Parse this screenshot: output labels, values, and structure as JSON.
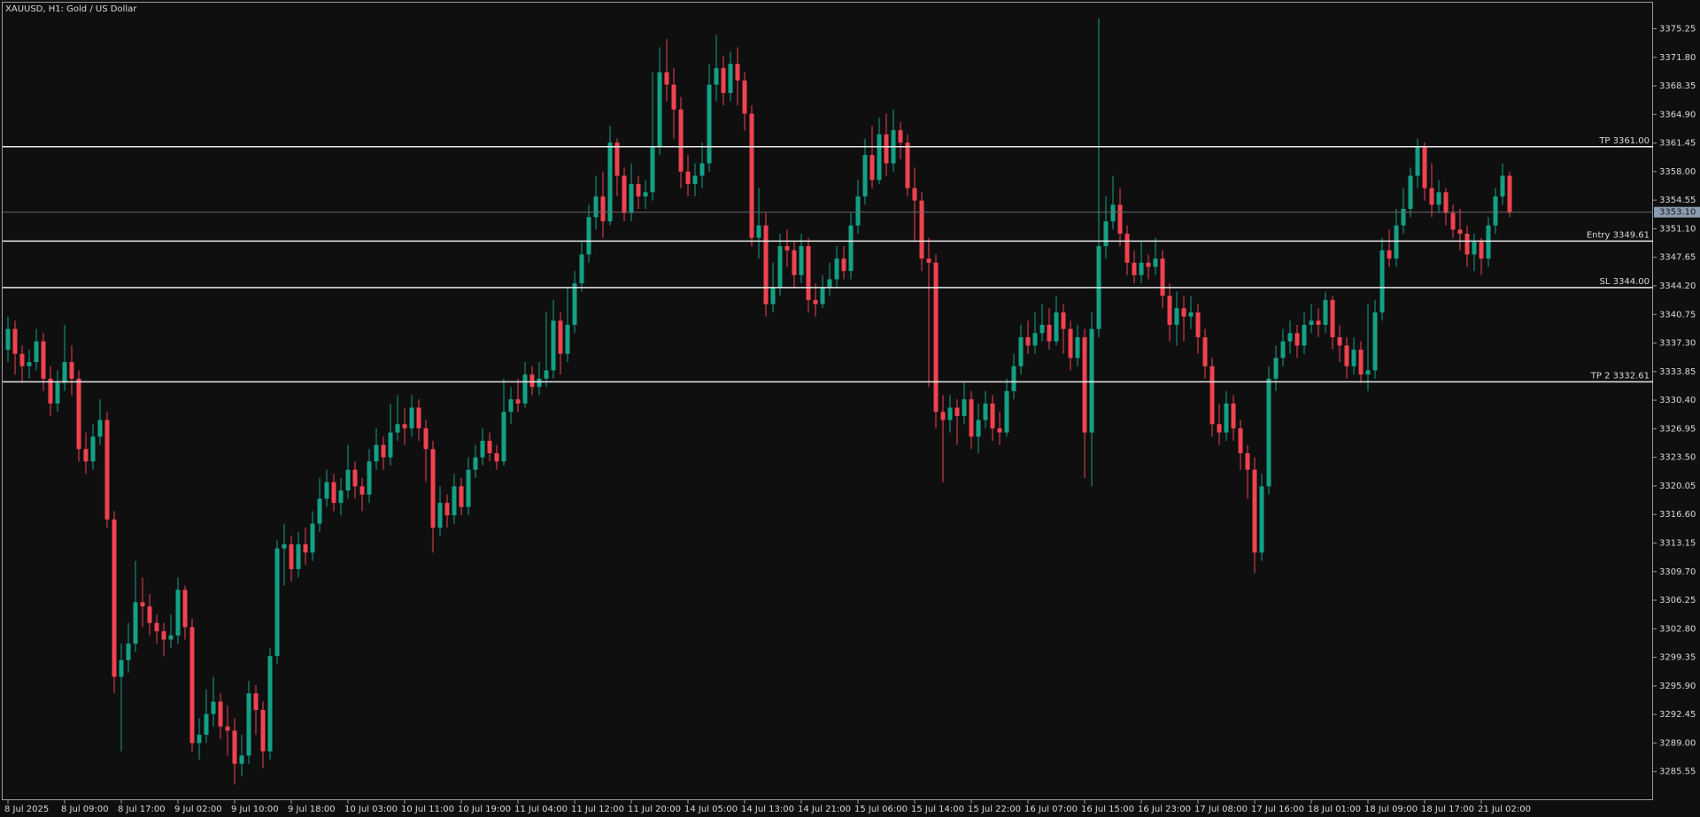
{
  "chart_data": {
    "type": "candlestick",
    "title": "XAUUSD, H1:  Gold / US Dollar",
    "up_color": "#14a085",
    "down_color": "#f0424f",
    "level_color": "#e8e8e8",
    "categories": [
      "8 Jul 2025",
      null,
      null,
      null,
      null,
      null,
      null,
      null,
      "8 Jul 09:00",
      null,
      null,
      null,
      null,
      null,
      null,
      null,
      "8 Jul 17:00",
      null,
      null,
      null,
      null,
      null,
      null,
      null,
      "9 Jul 02:00",
      null,
      null,
      null,
      null,
      null,
      null,
      null,
      "9 Jul 10:00",
      null,
      null,
      null,
      null,
      null,
      null,
      null,
      "9 Jul 18:00",
      null,
      null,
      null,
      null,
      null,
      null,
      null,
      "10 Jul 03:00",
      null,
      null,
      null,
      null,
      null,
      null,
      null,
      "10 Jul 11:00",
      null,
      null,
      null,
      null,
      null,
      null,
      null,
      "10 Jul 19:00",
      null,
      null,
      null,
      null,
      null,
      null,
      null,
      "11 Jul 04:00",
      null,
      null,
      null,
      null,
      null,
      null,
      null,
      "11 Jul 12:00",
      null,
      null,
      null,
      null,
      null,
      null,
      null,
      "11 Jul 20:00",
      null,
      null,
      null,
      null,
      null,
      null,
      null,
      "14 Jul 05:00",
      null,
      null,
      null,
      null,
      null,
      null,
      null,
      "14 Jul 13:00",
      null,
      null,
      null,
      null,
      null,
      null,
      null,
      "14 Jul 21:00",
      null,
      null,
      null,
      null,
      null,
      null,
      null,
      "15 Jul 06:00",
      null,
      null,
      null,
      null,
      null,
      null,
      null,
      "15 Jul 14:00",
      null,
      null,
      null,
      null,
      null,
      null,
      null,
      "15 Jul 22:00",
      null,
      null,
      null,
      null,
      null,
      null,
      null,
      "16 Jul 07:00",
      null,
      null,
      null,
      null,
      null,
      null,
      null,
      "16 Jul 15:00",
      null,
      null,
      null,
      null,
      null,
      null,
      null,
      "16 Jul 23:00",
      null,
      null,
      null,
      null,
      null,
      null,
      null,
      "17 Jul 08:00",
      null,
      null,
      null,
      null,
      null,
      null,
      null,
      "17 Jul 16:00",
      null,
      null,
      null,
      null,
      null,
      null,
      null,
      "18 Jul 01:00",
      null,
      null,
      null,
      null,
      null,
      null,
      null,
      "18 Jul 09:00",
      null,
      null,
      null,
      null,
      null,
      null,
      null,
      "18 Jul 17:00",
      null,
      null,
      null,
      null,
      null,
      null,
      null,
      "21 Jul 02:00",
      null,
      null,
      null,
      null
    ],
    "open": [
      3336.5,
      3339.0,
      3336.0,
      3334.5,
      3335.0,
      3337.5,
      3333.0,
      3330.0,
      3332.5,
      3335.0,
      3333.0,
      3324.5,
      3323.0,
      3326.0,
      3328.0,
      3316.0,
      3297.0,
      3299.0,
      3301.0,
      3306.0,
      3305.5,
      3303.5,
      3302.5,
      3301.5,
      3302.0,
      3307.5,
      3303.0,
      3289.0,
      3290.0,
      3292.5,
      3294.0,
      3291.0,
      3290.5,
      3286.5,
      3287.5,
      3295.0,
      3293.0,
      3288.0,
      3299.5,
      3312.5,
      3313.0,
      3310.0,
      3313.0,
      3312.0,
      3315.5,
      3318.5,
      3320.5,
      3318.0,
      3319.5,
      3322.0,
      3320.0,
      3319.0,
      3323.0,
      3325.0,
      3323.5,
      3326.5,
      3327.5,
      3327.0,
      3329.5,
      3327.0,
      3324.5,
      3315.0,
      3318.0,
      3316.5,
      3320.0,
      3317.5,
      3322.0,
      3323.5,
      3325.5,
      3324.0,
      3323.0,
      3329.0,
      3330.5,
      3330.0,
      3333.5,
      3332.0,
      3333.0,
      3334.0,
      3340.0,
      3336.0,
      3339.5,
      3344.5,
      3348.0,
      3352.5,
      3355.0,
      3352.0,
      3361.5,
      3357.5,
      3353.0,
      3356.5,
      3355.0,
      3355.5,
      3361.0,
      3370.0,
      3368.5,
      3365.5,
      3358.0,
      3356.5,
      3357.5,
      3359.0,
      3368.5,
      3370.5,
      3367.5,
      3371.0,
      3369.0,
      3365.0,
      3350.0,
      3351.5,
      3342.0,
      3344.0,
      3349.0,
      3348.5,
      3345.5,
      3349.0,
      3342.5,
      3342.0,
      3344.0,
      3345.0,
      3347.5,
      3346.0,
      3351.5,
      3355.0,
      3360.0,
      3357.0,
      3362.5,
      3359.0,
      3363.0,
      3361.5,
      3356.0,
      3354.5,
      3347.5,
      3347.0,
      3329.0,
      3328.0,
      3329.5,
      3328.5,
      3330.5,
      3326.0,
      3328.0,
      3330.0,
      3327.0,
      3326.5,
      3331.5,
      3334.5,
      3338.0,
      3337.0,
      3338.5,
      3339.5,
      3337.5,
      3341.0,
      3339.0,
      3335.5,
      3338.0,
      3326.5,
      3339.0,
      3349.0,
      3352.0,
      3354.0,
      3350.5,
      3347.0,
      3345.5,
      3347.0,
      3346.5,
      3347.5,
      3343.0,
      3339.5,
      3341.5,
      3340.5,
      3341.0,
      3338.0,
      3334.5,
      3327.5,
      3326.5,
      3330.0,
      3327.0,
      3324.0,
      3322.0,
      3312.0,
      3320.0,
      3333.0,
      3335.5,
      3337.5,
      3338.5,
      3337.0,
      3339.5,
      3340.0,
      3339.5,
      3342.5,
      3338.0,
      3337.0,
      3334.5,
      3336.5,
      3333.5,
      3334.0,
      3341.0,
      3348.5,
      3347.5,
      3351.5,
      3353.5,
      3357.5,
      3361.0,
      3356.0,
      3354.0,
      3355.5,
      3353.0,
      3351.0,
      3350.5,
      3348.0,
      3349.5,
      3347.5,
      3351.5,
      3355.0,
      3357.5
    ],
    "high": [
      3340.5,
      3340.0,
      3337.0,
      3336.5,
      3339.0,
      3338.5,
      3334.5,
      3334.0,
      3339.5,
      3337.0,
      3334.0,
      3326.5,
      3327.5,
      3330.5,
      3329.0,
      3317.0,
      3301.0,
      3303.5,
      3311.0,
      3309.0,
      3307.0,
      3304.5,
      3303.5,
      3304.5,
      3309.0,
      3308.0,
      3304.0,
      3292.0,
      3295.5,
      3297.0,
      3295.0,
      3293.5,
      3292.0,
      3290.0,
      3296.5,
      3296.0,
      3294.0,
      3300.5,
      3313.5,
      3315.5,
      3314.0,
      3314.5,
      3315.0,
      3317.0,
      3321.0,
      3322.0,
      3321.5,
      3321.0,
      3325.0,
      3323.0,
      3321.0,
      3324.5,
      3327.0,
      3326.0,
      3330.0,
      3331.0,
      3329.5,
      3331.0,
      3330.5,
      3328.0,
      3325.5,
      3320.0,
      3319.0,
      3321.5,
      3321.0,
      3323.5,
      3325.0,
      3327.0,
      3326.5,
      3325.0,
      3333.0,
      3332.0,
      3333.0,
      3335.0,
      3334.5,
      3335.0,
      3341.0,
      3342.5,
      3341.0,
      3344.0,
      3346.0,
      3349.5,
      3354.0,
      3357.5,
      3358.0,
      3363.5,
      3362.0,
      3358.5,
      3359.0,
      3357.5,
      3357.0,
      3370.0,
      3373.0,
      3374.0,
      3370.5,
      3367.0,
      3360.0,
      3359.0,
      3361.5,
      3371.0,
      3374.5,
      3372.0,
      3372.5,
      3373.0,
      3370.0,
      3366.0,
      3356.0,
      3353.0,
      3347.0,
      3350.5,
      3351.0,
      3349.5,
      3350.5,
      3350.0,
      3344.5,
      3345.5,
      3347.0,
      3349.0,
      3349.0,
      3353.0,
      3357.0,
      3362.0,
      3363.5,
      3364.5,
      3365.0,
      3365.5,
      3364.0,
      3362.5,
      3358.5,
      3355.5,
      3350.0,
      3348.0,
      3331.0,
      3331.0,
      3330.5,
      3332.5,
      3331.5,
      3330.0,
      3331.5,
      3331.0,
      3329.0,
      3333.0,
      3336.0,
      3339.5,
      3340.0,
      3341.0,
      3342.0,
      3341.5,
      3343.0,
      3342.0,
      3340.0,
      3339.5,
      3339.0,
      3341.0,
      3376.5,
      3355.0,
      3357.5,
      3356.0,
      3351.5,
      3348.5,
      3349.5,
      3348.0,
      3350.0,
      3348.5,
      3344.5,
      3343.5,
      3343.0,
      3343.0,
      3342.0,
      3339.0,
      3335.5,
      3330.0,
      3331.5,
      3331.0,
      3328.0,
      3325.0,
      3323.5,
      3321.5,
      3334.5,
      3337.0,
      3339.0,
      3340.0,
      3339.5,
      3341.0,
      3342.0,
      3341.5,
      3343.5,
      3343.0,
      3339.5,
      3338.0,
      3338.0,
      3337.5,
      3342.0,
      3342.5,
      3350.0,
      3351.0,
      3353.5,
      3356.0,
      3358.5,
      3362.0,
      3361.5,
      3359.0,
      3357.0,
      3356.0,
      3354.0,
      3353.5,
      3351.5,
      3350.5,
      3350.0,
      3352.5,
      3356.0,
      3359.0,
      3358.0
    ],
    "low": [
      3335.0,
      3333.5,
      3332.5,
      3333.0,
      3334.0,
      3331.5,
      3328.5,
      3329.0,
      3331.5,
      3331.0,
      3323.0,
      3321.5,
      3322.0,
      3325.0,
      3315.0,
      3295.0,
      3288.0,
      3297.5,
      3300.0,
      3303.0,
      3302.0,
      3301.0,
      3299.5,
      3300.5,
      3301.0,
      3301.5,
      3288.0,
      3287.0,
      3289.0,
      3291.0,
      3289.5,
      3287.5,
      3284.0,
      3285.0,
      3286.5,
      3290.0,
      3286.0,
      3287.0,
      3298.5,
      3308.0,
      3308.5,
      3309.0,
      3310.5,
      3311.0,
      3314.5,
      3317.5,
      3317.0,
      3316.5,
      3318.5,
      3318.5,
      3317.0,
      3318.0,
      3322.0,
      3322.0,
      3322.5,
      3325.5,
      3325.0,
      3326.0,
      3325.5,
      3320.5,
      3312.0,
      3314.0,
      3315.0,
      3315.5,
      3316.5,
      3316.5,
      3321.0,
      3322.5,
      3323.0,
      3322.0,
      3322.5,
      3327.5,
      3329.0,
      3329.5,
      3331.0,
      3331.0,
      3332.0,
      3333.0,
      3333.5,
      3335.0,
      3338.5,
      3343.5,
      3347.0,
      3351.0,
      3350.0,
      3351.5,
      3355.0,
      3352.0,
      3352.0,
      3353.5,
      3353.5,
      3354.5,
      3360.0,
      3366.5,
      3362.0,
      3356.0,
      3355.0,
      3355.0,
      3356.0,
      3358.0,
      3366.5,
      3366.0,
      3366.5,
      3366.0,
      3363.0,
      3349.0,
      3347.5,
      3340.5,
      3341.0,
      3343.0,
      3346.5,
      3344.0,
      3344.5,
      3341.0,
      3340.5,
      3341.5,
      3343.0,
      3344.0,
      3345.0,
      3345.0,
      3350.5,
      3354.0,
      3356.0,
      3356.5,
      3357.5,
      3358.0,
      3359.5,
      3355.0,
      3349.5,
      3346.0,
      3332.0,
      3327.0,
      3320.5,
      3326.5,
      3325.0,
      3327.5,
      3324.5,
      3324.0,
      3327.0,
      3325.5,
      3325.0,
      3326.0,
      3330.5,
      3333.5,
      3336.0,
      3336.0,
      3337.5,
      3336.5,
      3337.0,
      3336.0,
      3334.0,
      3334.5,
      3321.0,
      3320.0,
      3338.0,
      3347.5,
      3351.0,
      3349.0,
      3345.5,
      3344.5,
      3344.5,
      3345.0,
      3345.5,
      3341.5,
      3337.5,
      3337.0,
      3337.5,
      3339.0,
      3336.0,
      3333.0,
      3326.0,
      3325.0,
      3325.5,
      3325.5,
      3322.0,
      3318.5,
      3309.5,
      3311.0,
      3319.0,
      3331.5,
      3334.5,
      3336.0,
      3335.5,
      3336.0,
      3338.5,
      3338.0,
      3338.5,
      3336.5,
      3335.0,
      3333.0,
      3333.5,
      3332.5,
      3331.5,
      3333.0,
      3340.0,
      3346.5,
      3346.5,
      3350.5,
      3352.5,
      3356.0,
      3354.5,
      3352.5,
      3353.0,
      3351.5,
      3350.0,
      3348.5,
      3346.5,
      3346.0,
      3345.5,
      3346.5,
      3350.5,
      3354.0,
      3352.5
    ],
    "close": [
      3339.0,
      3336.0,
      3334.5,
      3335.0,
      3337.5,
      3333.0,
      3330.0,
      3332.5,
      3335.0,
      3333.0,
      3324.5,
      3323.0,
      3326.0,
      3328.0,
      3316.0,
      3297.0,
      3299.0,
      3301.0,
      3306.0,
      3305.5,
      3303.5,
      3302.5,
      3301.5,
      3302.0,
      3307.5,
      3303.0,
      3289.0,
      3290.0,
      3292.5,
      3294.0,
      3291.0,
      3290.5,
      3286.5,
      3287.5,
      3295.0,
      3293.0,
      3288.0,
      3299.5,
      3312.5,
      3313.0,
      3310.0,
      3313.0,
      3312.0,
      3315.5,
      3318.5,
      3320.5,
      3318.0,
      3319.5,
      3322.0,
      3320.0,
      3319.0,
      3323.0,
      3325.0,
      3323.5,
      3326.5,
      3327.5,
      3327.0,
      3329.5,
      3327.0,
      3324.5,
      3315.0,
      3318.0,
      3316.5,
      3320.0,
      3317.5,
      3322.0,
      3323.5,
      3325.5,
      3324.0,
      3323.0,
      3329.0,
      3330.5,
      3330.0,
      3333.5,
      3332.0,
      3333.0,
      3334.0,
      3340.0,
      3336.0,
      3339.5,
      3344.5,
      3348.0,
      3352.5,
      3355.0,
      3352.0,
      3361.5,
      3357.5,
      3353.0,
      3356.5,
      3355.0,
      3355.5,
      3361.0,
      3370.0,
      3368.5,
      3365.5,
      3358.0,
      3356.5,
      3357.5,
      3359.0,
      3368.5,
      3370.5,
      3367.5,
      3371.0,
      3369.0,
      3365.0,
      3350.0,
      3351.5,
      3342.0,
      3344.0,
      3349.0,
      3348.5,
      3345.5,
      3349.0,
      3342.5,
      3342.0,
      3344.0,
      3345.0,
      3347.5,
      3346.0,
      3351.5,
      3355.0,
      3360.0,
      3357.0,
      3362.5,
      3359.0,
      3363.0,
      3361.5,
      3356.0,
      3354.5,
      3347.5,
      3347.0,
      3329.0,
      3328.0,
      3329.5,
      3328.5,
      3330.5,
      3326.0,
      3328.0,
      3330.0,
      3327.0,
      3326.5,
      3331.5,
      3334.5,
      3338.0,
      3337.0,
      3338.5,
      3339.5,
      3337.5,
      3341.0,
      3339.0,
      3335.5,
      3338.0,
      3326.5,
      3339.0,
      3349.0,
      3352.0,
      3354.0,
      3350.5,
      3347.0,
      3345.5,
      3347.0,
      3346.5,
      3347.5,
      3343.0,
      3339.5,
      3341.5,
      3340.5,
      3341.0,
      3338.0,
      3334.5,
      3327.5,
      3326.5,
      3330.0,
      3327.0,
      3324.0,
      3322.0,
      3312.0,
      3320.0,
      3333.0,
      3335.5,
      3337.5,
      3338.5,
      3337.0,
      3339.5,
      3340.0,
      3339.5,
      3342.5,
      3338.0,
      3337.0,
      3334.5,
      3336.5,
      3333.5,
      3334.0,
      3341.0,
      3348.5,
      3347.5,
      3351.5,
      3353.5,
      3357.5,
      3361.0,
      3356.0,
      3354.0,
      3355.5,
      3353.0,
      3351.0,
      3350.5,
      3348.0,
      3349.5,
      3347.5,
      3351.5,
      3355.0,
      3357.5,
      3353.1
    ],
    "ylim": [
      3282.1,
      3378.4
    ],
    "yticks": [
      3285.55,
      {
        "value": 3289,
        "label": "3289.00"
      },
      3292.45,
      {
        "value": 3295.9,
        "label": "3295.90"
      },
      3299.35,
      {
        "value": 3302.8,
        "label": "3302.80"
      },
      3306.25,
      {
        "value": 3309.7,
        "label": "3309.70"
      },
      3313.15,
      {
        "value": 3316.6,
        "label": "3316.60"
      },
      3320.05,
      {
        "value": 3323.5,
        "label": "3323.50"
      },
      3326.95,
      {
        "value": 3330.4,
        "label": "3330.40"
      },
      3333.85,
      {
        "value": 3337.3,
        "label": "3337.30"
      },
      3340.75,
      {
        "value": 3344.2,
        "label": "3344.20"
      },
      3347.65,
      {
        "value": 3351.1,
        "label": "3351.10"
      },
      3354.55,
      {
        "value": 3358,
        "label": "3358.00"
      },
      3361.45,
      {
        "value": 3364.9,
        "label": "3364.90"
      },
      3368.35,
      {
        "value": 3371.8,
        "label": "3371.80"
      },
      3375.25
    ],
    "levels": [
      {
        "label": "TP 3361.00",
        "value": 3361.0
      },
      {
        "label": "Entry 3349.61",
        "value": 3349.61
      },
      {
        "label": "SL 3344.00",
        "value": 3344.0
      },
      {
        "label": "TP 2 3332.61",
        "value": 3332.61
      }
    ],
    "bid": {
      "value": 3353.1,
      "label": "3353.10"
    }
  }
}
